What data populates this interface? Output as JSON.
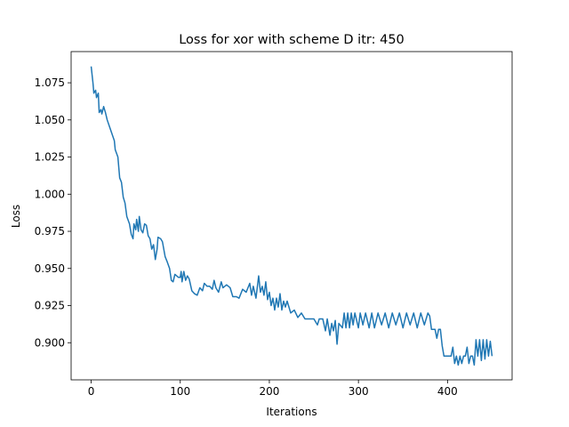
{
  "chart_data": {
    "type": "line",
    "title": "Loss for xor with scheme D itr: 450",
    "x_label": "Iterations",
    "y_label": "Loss",
    "color": "#1f77b4",
    "xlim": [
      -22.5,
      472.5
    ],
    "ylim": [
      0.875,
      1.096
    ],
    "xticks": [
      0,
      100,
      200,
      300,
      400
    ],
    "yticks": [
      {
        "value": 0.9,
        "label": "0.900"
      },
      {
        "value": 0.925,
        "label": "0.925"
      },
      {
        "value": 0.95,
        "label": "0.950"
      },
      {
        "value": 0.975,
        "label": "0.975"
      },
      {
        "value": 1.0,
        "label": "1.000"
      },
      {
        "value": 1.025,
        "label": "1.025"
      },
      {
        "value": 1.05,
        "label": "1.050"
      },
      {
        "value": 1.075,
        "label": "1.075"
      }
    ],
    "x": [
      0,
      2,
      3,
      5,
      6,
      8,
      9,
      11,
      12,
      14,
      16,
      18,
      22,
      26,
      27,
      30,
      32,
      34,
      36,
      38,
      40,
      43,
      45,
      47,
      48,
      50,
      51,
      53,
      54,
      56,
      58,
      60,
      62,
      64,
      66,
      68,
      70,
      72,
      74,
      75,
      78,
      80,
      83,
      85,
      88,
      90,
      92,
      94,
      98,
      100,
      101,
      102,
      104,
      106,
      108,
      110,
      113,
      116,
      119,
      122,
      125,
      127,
      130,
      133,
      136,
      138,
      140,
      143,
      146,
      148,
      152,
      156,
      159,
      163,
      166,
      170,
      174,
      178,
      180,
      182,
      185,
      188,
      190,
      192,
      194,
      196,
      198,
      200,
      202,
      204,
      206,
      208,
      210,
      212,
      214,
      216,
      218,
      220,
      224,
      228,
      232,
      236,
      240,
      245,
      250,
      254,
      256,
      260,
      263,
      265,
      268,
      270,
      272,
      274,
      276,
      278,
      282,
      284,
      286,
      288,
      290,
      292,
      294,
      296,
      300,
      302,
      305,
      308,
      312,
      315,
      318,
      322,
      326,
      330,
      334,
      338,
      342,
      346,
      350,
      354,
      358,
      362,
      366,
      370,
      374,
      378,
      380,
      382,
      386,
      388,
      390,
      392,
      394,
      396,
      400,
      404,
      406,
      408,
      410,
      412,
      414,
      416,
      418,
      420,
      422,
      424,
      426,
      428,
      430,
      432,
      434,
      436,
      438,
      440,
      442,
      444,
      446,
      448,
      450
    ],
    "values": [
      1.086,
      1.075,
      1.068,
      1.07,
      1.065,
      1.068,
      1.055,
      1.057,
      1.054,
      1.059,
      1.055,
      1.05,
      1.043,
      1.036,
      1.03,
      1.025,
      1.011,
      1.008,
      0.998,
      0.994,
      0.985,
      0.98,
      0.973,
      0.97,
      0.98,
      0.976,
      0.983,
      0.975,
      0.985,
      0.976,
      0.974,
      0.98,
      0.979,
      0.972,
      0.97,
      0.963,
      0.966,
      0.956,
      0.963,
      0.971,
      0.97,
      0.968,
      0.958,
      0.955,
      0.95,
      0.942,
      0.941,
      0.946,
      0.944,
      0.944,
      0.948,
      0.941,
      0.948,
      0.942,
      0.945,
      0.943,
      0.935,
      0.933,
      0.932,
      0.937,
      0.935,
      0.94,
      0.938,
      0.938,
      0.936,
      0.942,
      0.937,
      0.934,
      0.941,
      0.937,
      0.939,
      0.937,
      0.931,
      0.931,
      0.93,
      0.936,
      0.934,
      0.94,
      0.932,
      0.938,
      0.93,
      0.945,
      0.934,
      0.938,
      0.932,
      0.941,
      0.929,
      0.934,
      0.925,
      0.93,
      0.922,
      0.93,
      0.924,
      0.933,
      0.922,
      0.928,
      0.924,
      0.928,
      0.92,
      0.922,
      0.917,
      0.92,
      0.916,
      0.916,
      0.916,
      0.912,
      0.916,
      0.916,
      0.908,
      0.916,
      0.905,
      0.913,
      0.908,
      0.915,
      0.899,
      0.913,
      0.91,
      0.92,
      0.91,
      0.92,
      0.91,
      0.92,
      0.912,
      0.92,
      0.91,
      0.92,
      0.912,
      0.92,
      0.91,
      0.92,
      0.91,
      0.92,
      0.912,
      0.92,
      0.91,
      0.92,
      0.912,
      0.92,
      0.91,
      0.92,
      0.912,
      0.92,
      0.91,
      0.92,
      0.912,
      0.92,
      0.918,
      0.909,
      0.909,
      0.903,
      0.909,
      0.909,
      0.898,
      0.891,
      0.891,
      0.891,
      0.897,
      0.886,
      0.891,
      0.885,
      0.891,
      0.886,
      0.891,
      0.891,
      0.897,
      0.886,
      0.891,
      0.891,
      0.885,
      0.902,
      0.891,
      0.902,
      0.888,
      0.902,
      0.889,
      0.902,
      0.891,
      0.901,
      0.891
    ]
  }
}
